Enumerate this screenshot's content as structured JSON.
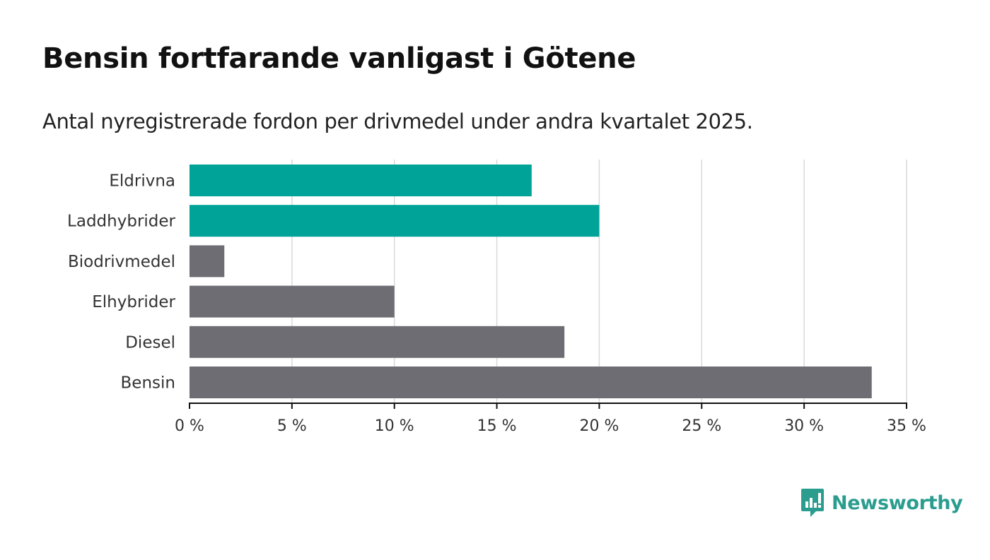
{
  "header": {
    "title": "Bensin fortfarande vanligast i Götene",
    "subtitle": "Antal nyregistrerade fordon per drivmedel under andra kvartalet 2025."
  },
  "brand": {
    "name": "Newsworthy",
    "icon": "bar-chart-speech-bubble-icon",
    "color": "#2a9d8f"
  },
  "colors": {
    "highlight": "#00a397",
    "default": "#6e6d73",
    "grid": "#d9d9d9",
    "axis": "#111111"
  },
  "chart_data": {
    "type": "bar",
    "orientation": "horizontal",
    "title": "Bensin fortfarande vanligast i Götene",
    "subtitle": "Antal nyregistrerade fordon per drivmedel under andra kvartalet 2025.",
    "xlabel": "",
    "ylabel": "",
    "categories": [
      "Eldrivna",
      "Laddhybrider",
      "Biodrivmedel",
      "Elhybrider",
      "Diesel",
      "Bensin"
    ],
    "values": [
      16.7,
      20.0,
      1.7,
      10.0,
      18.3,
      33.3
    ],
    "highlighted": [
      true,
      true,
      false,
      false,
      false,
      false
    ],
    "unit": "%",
    "xlim": [
      0,
      35
    ],
    "ticks": [
      0,
      5,
      10,
      15,
      20,
      25,
      30,
      35
    ],
    "tick_labels": [
      "0 %",
      "5 %",
      "10 %",
      "15 %",
      "20 %",
      "25 %",
      "30 %",
      "35 %"
    ],
    "grid": true,
    "legend": "none"
  }
}
